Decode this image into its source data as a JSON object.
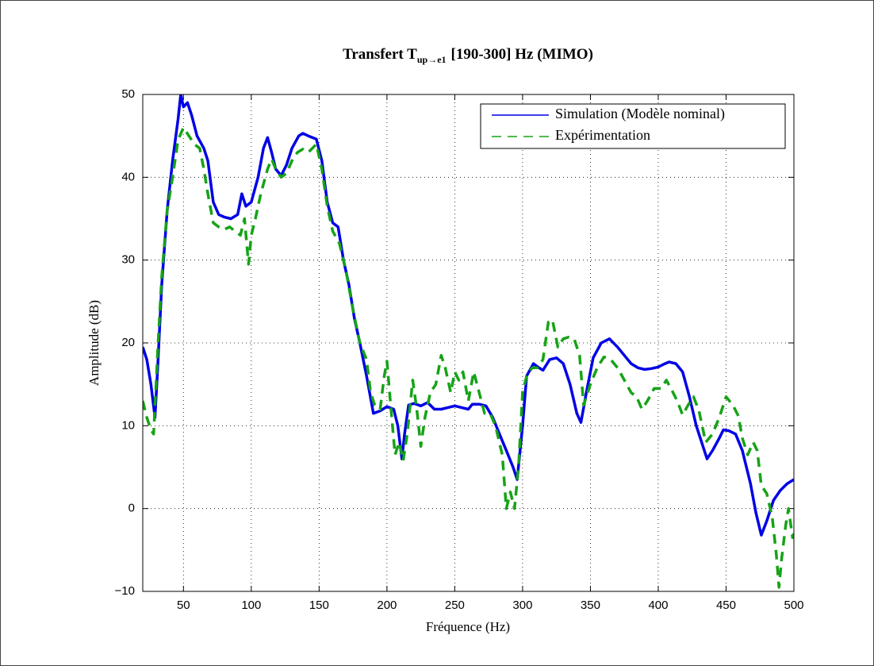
{
  "chart_data": {
    "type": "line",
    "title": {
      "main": "Transfert T",
      "subscript": "up→e1",
      "rest": "[190-300] Hz (MIMO)"
    },
    "xlabel": "Fréquence (Hz)",
    "ylabel": "Amplitude (dB)",
    "xlim": [
      20,
      500
    ],
    "ylim": [
      -10,
      50
    ],
    "xticks": [
      50,
      100,
      150,
      200,
      250,
      300,
      350,
      400,
      450,
      500
    ],
    "yticks": [
      {
        "value": -10,
        "label": "−10"
      },
      0,
      10,
      20,
      30,
      40,
      50
    ],
    "grid": true,
    "legend": "upper right",
    "series": [
      {
        "name": "Simulation (Modèle nominal)",
        "color": "#0000e6",
        "dash": "solid",
        "x": [
          20,
          23,
          26,
          29,
          31,
          34,
          38,
          42,
          46,
          48,
          50,
          53,
          56,
          60,
          65,
          68,
          72,
          76,
          80,
          85,
          90,
          93,
          96,
          100,
          105,
          109,
          112,
          115,
          118,
          122,
          126,
          130,
          135,
          138,
          142,
          148,
          152,
          156,
          160,
          164,
          168,
          172,
          176,
          180,
          185,
          190,
          195,
          200,
          205,
          208,
          211,
          213,
          216,
          220,
          225,
          230,
          235,
          240,
          245,
          250,
          255,
          260,
          263,
          268,
          273,
          278,
          283,
          288,
          293,
          296,
          300,
          303,
          308,
          312,
          315,
          320,
          325,
          330,
          335,
          340,
          343,
          347,
          352,
          358,
          364,
          370,
          375,
          380,
          385,
          390,
          395,
          400,
          405,
          408,
          413,
          418,
          423,
          428,
          432,
          436,
          440,
          445,
          448,
          452,
          457,
          462,
          468,
          472,
          476,
          480,
          485,
          490,
          495,
          500
        ],
        "values": [
          19.5,
          18,
          15,
          11,
          17,
          27,
          36,
          42,
          47,
          50,
          48.5,
          49,
          47.5,
          45,
          43.5,
          42,
          37,
          35.5,
          35.2,
          35,
          35.5,
          38,
          36.5,
          37,
          40,
          43.5,
          44.8,
          43,
          41,
          40.2,
          41.5,
          43.5,
          45,
          45.3,
          45,
          44.6,
          42,
          37,
          34.5,
          34,
          30,
          27,
          23,
          20,
          16,
          11.5,
          11.8,
          12.3,
          12,
          10,
          6,
          9,
          12.5,
          12.7,
          12.4,
          12.8,
          12,
          12,
          12.2,
          12.4,
          12.2,
          12,
          12.6,
          12.6,
          12.4,
          11,
          9,
          7,
          5,
          3.5,
          10,
          16,
          17.5,
          17,
          16.7,
          18,
          18.2,
          17.5,
          15,
          11.5,
          10.4,
          14,
          18.2,
          20,
          20.5,
          19.5,
          18.5,
          17.5,
          17,
          16.8,
          16.9,
          17.1,
          17.5,
          17.7,
          17.5,
          16.5,
          13.5,
          10,
          8,
          6,
          7,
          8.5,
          9.5,
          9.4,
          9,
          7,
          3,
          -0.5,
          -3.2,
          -1.5,
          1,
          2.2,
          3,
          3.5
        ]
      },
      {
        "name": "Expérimentation",
        "color": "#16a316",
        "dash": "dashed",
        "x": [
          20,
          23,
          26,
          28,
          31,
          34,
          38,
          42,
          46,
          50,
          54,
          58,
          62,
          65,
          68,
          72,
          76,
          80,
          84,
          88,
          92,
          95,
          98,
          100,
          103,
          107,
          112,
          115,
          118,
          122,
          126,
          130,
          134,
          138,
          142,
          148,
          152,
          156,
          160,
          165,
          170,
          175,
          180,
          185,
          188,
          191,
          195,
          198,
          200,
          203,
          206,
          209,
          212,
          215,
          219,
          222,
          225,
          228,
          232,
          236,
          240,
          243,
          247,
          250,
          253,
          256,
          260,
          264,
          268,
          272,
          276,
          280,
          285,
          288,
          291,
          294,
          297,
          300,
          303,
          307,
          311,
          315,
          319,
          322,
          326,
          330,
          334,
          338,
          342,
          345,
          350,
          355,
          360,
          365,
          370,
          375,
          380,
          384,
          388,
          392,
          397,
          402,
          406,
          410,
          414,
          418,
          422,
          426,
          430,
          435,
          440,
          445,
          450,
          455,
          459,
          462,
          466,
          470,
          473,
          476,
          480,
          484,
          487,
          489,
          491,
          494,
          496,
          499,
          500
        ],
        "values": [
          13,
          11,
          9.5,
          9,
          19,
          28,
          36,
          40,
          44.5,
          46,
          45,
          44,
          43.5,
          41,
          38,
          34.5,
          34,
          33.7,
          34,
          33.5,
          33,
          35,
          29.5,
          33,
          35,
          38,
          41,
          42.2,
          41,
          40,
          40.5,
          42,
          43,
          43.4,
          43,
          44,
          41,
          36.5,
          33.5,
          32,
          28.5,
          24,
          20,
          18,
          14,
          12.5,
          12,
          16,
          17.8,
          12,
          6.5,
          8,
          5.8,
          9,
          15.5,
          12,
          7.5,
          11,
          14,
          15,
          18.5,
          17,
          14,
          16.5,
          15.5,
          16.5,
          13,
          16.5,
          14,
          11.5,
          11.5,
          10,
          6.5,
          0,
          2,
          0,
          5,
          14,
          16,
          17,
          17,
          18,
          22.5,
          22.8,
          19.5,
          20.5,
          20.7,
          20.5,
          18.5,
          12.5,
          15,
          17,
          18.3,
          18,
          17,
          15.5,
          14,
          13.5,
          12,
          13,
          14.5,
          14.5,
          15.5,
          14.3,
          13,
          11.3,
          12.5,
          13.5,
          11.8,
          8,
          9,
          11,
          13.5,
          12.5,
          11.2,
          8.5,
          6.5,
          8,
          7,
          2.8,
          1.8,
          -1,
          -5.5,
          -9.5,
          -6,
          -2,
          0,
          -3.5,
          -3
        ]
      }
    ]
  }
}
